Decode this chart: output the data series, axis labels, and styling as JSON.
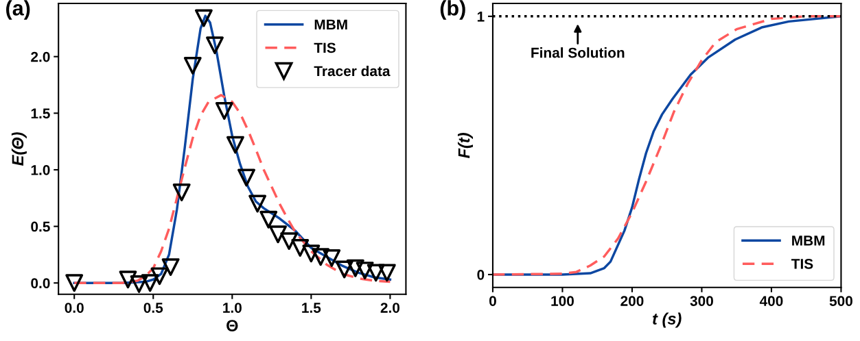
{
  "chart_data": [
    {
      "type": "line",
      "xlabel": "Θ",
      "ylabel": "E(Θ)",
      "annotations": [
        "(a)"
      ],
      "legend": "top right",
      "grid": false,
      "xlim": [
        -0.1,
        2.1
      ],
      "ylim": [
        -0.1,
        2.47
      ],
      "xticks": [
        {
          "value": 0,
          "label": "0.0"
        },
        0.5,
        {
          "value": 1,
          "label": "1.0"
        },
        1.5,
        {
          "value": 2,
          "label": "2.0"
        }
      ],
      "yticks": [
        {
          "value": 0,
          "label": "0.0"
        },
        0.5,
        {
          "value": 1,
          "label": "1.0"
        },
        1.5,
        {
          "value": 2,
          "label": "2.0"
        }
      ],
      "series": [
        {
          "name": "MBM",
          "line_style": "solid",
          "color": "#0d47a1",
          "x": [
            0,
            0.3,
            0.45,
            0.5,
            0.55,
            0.6,
            0.65,
            0.7,
            0.75,
            0.8,
            0.83,
            0.86,
            0.9,
            0.95,
            1.0,
            1.05,
            1.1,
            1.15,
            1.2,
            1.3,
            1.4,
            1.5,
            1.6,
            1.7,
            1.8,
            1.9,
            2.0
          ],
          "values": [
            0,
            0,
            0.01,
            0.03,
            0.08,
            0.25,
            0.65,
            1.2,
            1.8,
            2.25,
            2.36,
            2.3,
            2.05,
            1.65,
            1.3,
            1.05,
            0.85,
            0.72,
            0.66,
            0.57,
            0.46,
            0.31,
            0.23,
            0.15,
            0.09,
            0.05,
            0.03
          ]
        },
        {
          "name": "TIS",
          "line_style": "dashed",
          "color": "#ff5c5c",
          "x": [
            0,
            0.3,
            0.4,
            0.45,
            0.5,
            0.55,
            0.6,
            0.65,
            0.7,
            0.75,
            0.8,
            0.85,
            0.93,
            1.0,
            1.05,
            1.1,
            1.15,
            1.2,
            1.25,
            1.3,
            1.35,
            1.4,
            1.5,
            1.6,
            1.7,
            1.8,
            1.9,
            2.0
          ],
          "values": [
            0,
            0,
            0.02,
            0.06,
            0.13,
            0.28,
            0.48,
            0.75,
            1.02,
            1.28,
            1.48,
            1.6,
            1.66,
            1.6,
            1.5,
            1.35,
            1.18,
            1.0,
            0.85,
            0.7,
            0.57,
            0.45,
            0.28,
            0.16,
            0.08,
            0.04,
            0.02,
            0.01
          ]
        },
        {
          "name": "Tracer data",
          "type": "scatter",
          "marker": "triangle",
          "color": "#000000",
          "x": [
            0,
            0.34,
            0.41,
            0.48,
            0.54,
            0.61,
            0.68,
            0.75,
            0.82,
            0.89,
            0.95,
            1.02,
            1.09,
            1.16,
            1.23,
            1.29,
            1.36,
            1.43,
            1.5,
            1.56,
            1.63,
            1.71,
            1.78,
            1.84,
            1.91,
            1.98
          ],
          "values": [
            0,
            0.03,
            -0.01,
            0,
            0.06,
            0.14,
            0.8,
            1.92,
            2.34,
            2.1,
            1.52,
            1.22,
            0.93,
            0.7,
            0.56,
            0.43,
            0.37,
            0.31,
            0.26,
            0.23,
            0.22,
            0.12,
            0.13,
            0.11,
            0.09,
            0.09
          ]
        }
      ]
    },
    {
      "type": "line",
      "xlabel": "t (s)",
      "ylabel": "F(t)",
      "annotations": [
        "(b)",
        {
          "text": "Final Solution",
          "x": 122,
          "y": 1
        }
      ],
      "legend": "bottom right",
      "grid": false,
      "xlim": [
        0,
        500
      ],
      "ylim": [
        -0.05,
        1.05
      ],
      "xticks": [
        0,
        100,
        200,
        300,
        400,
        500
      ],
      "yticks": [
        0,
        1
      ],
      "ref_lines": [
        {
          "axis": "y",
          "value": 1,
          "color": "#000000",
          "line_style": "dotted"
        }
      ],
      "series": [
        {
          "name": "MBM",
          "line_style": "solid",
          "color": "#0d47a1",
          "x": [
            0,
            100,
            140,
            160,
            169,
            189,
            200,
            210,
            220,
            231,
            243,
            258,
            284,
            309,
            348,
            386,
            425,
            500
          ],
          "values": [
            0,
            0,
            0.005,
            0.025,
            0.05,
            0.17,
            0.26,
            0.37,
            0.47,
            0.555,
            0.62,
            0.68,
            0.774,
            0.84,
            0.91,
            0.957,
            0.98,
            1.0
          ]
        },
        {
          "name": "TIS",
          "line_style": "dashed",
          "color": "#ff5c5c",
          "x": [
            0,
            100,
            120,
            140,
            160,
            180,
            200,
            220,
            240,
            260,
            280,
            300,
            320,
            350,
            400,
            450,
            500
          ],
          "values": [
            0,
            0.003,
            0.01,
            0.035,
            0.07,
            0.14,
            0.24,
            0.36,
            0.49,
            0.63,
            0.74,
            0.83,
            0.9,
            0.95,
            0.99,
            1.0,
            1.0
          ]
        }
      ]
    }
  ]
}
